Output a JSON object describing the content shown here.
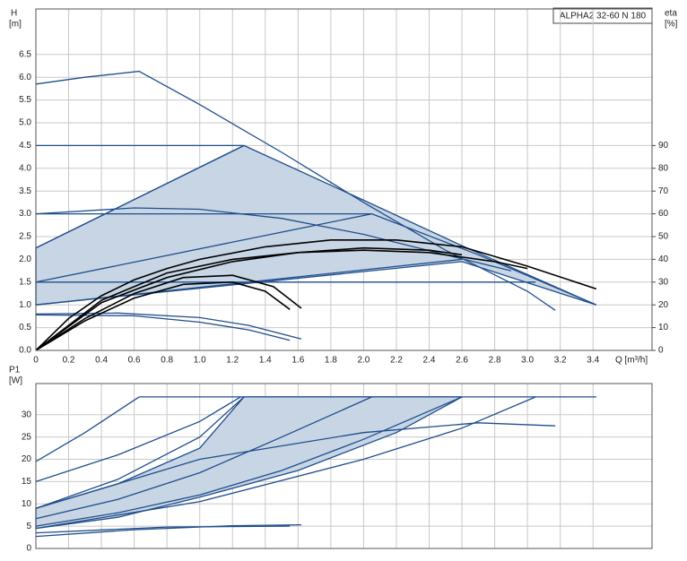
{
  "chart_data": [
    {
      "type": "line",
      "title": "ALPHA2 32-60 N 180",
      "ylabel": "H",
      "yunit": "[m]",
      "y2label": "eta",
      "y2unit": "[%]",
      "xlabel": "Q [m³/h]",
      "xlim": [
        0,
        3.76
      ],
      "ylim": [
        0,
        7.5
      ],
      "y2lim": [
        0,
        150
      ],
      "grid": true,
      "xticks": [
        0,
        0.2,
        0.4,
        0.6,
        0.8,
        {
          "value": 1,
          "label": "1.0"
        },
        1.2,
        1.4,
        1.6,
        1.8,
        {
          "value": 2,
          "label": "2.0"
        },
        2.2,
        2.4,
        2.6,
        2.8,
        {
          "value": 3,
          "label": "3.0"
        },
        3.2,
        3.4
      ],
      "yticks": [
        {
          "value": 0,
          "label": "0.0"
        },
        0.5,
        {
          "value": 1,
          "label": "1.0"
        },
        1.5,
        {
          "value": 2,
          "label": "2.0"
        },
        2.5,
        {
          "value": 3,
          "label": "3.0"
        },
        3.5,
        {
          "value": 4,
          "label": "4.0"
        },
        4.5,
        {
          "value": 5,
          "label": "5.0"
        },
        5.5,
        {
          "value": 6,
          "label": "6.0"
        },
        6.5
      ],
      "y2ticks": [
        0,
        10,
        20,
        30,
        40,
        50,
        60,
        70,
        80,
        90
      ],
      "series": [
        {
          "color": "#1f4e8c",
          "fill": "#c8d5e4",
          "x": [
            0,
            0,
            1.27,
            2.0,
            2.6,
            3.42,
            2.6,
            0
          ],
          "values": [
            1.0,
            2.25,
            4.5,
            3.3,
            2.3,
            1.0,
            1.95,
            1.0
          ]
        },
        {
          "color": "#1f4e8c",
          "x": [
            0,
            0.3,
            0.63,
            1.0,
            1.5,
            2.0,
            2.5,
            3.0,
            3.17
          ],
          "values": [
            5.85,
            6.0,
            6.13,
            5.4,
            4.35,
            3.25,
            2.2,
            1.3,
            0.88
          ]
        },
        {
          "color": "#1f4e8c",
          "x": [
            0,
            1.27
          ],
          "values": [
            4.5,
            4.5
          ]
        },
        {
          "color": "#1f4e8c",
          "x": [
            0,
            2.05
          ],
          "values": [
            3.0,
            3.0
          ]
        },
        {
          "color": "#1f4e8c",
          "x": [
            0,
            3.05
          ],
          "values": [
            1.5,
            1.5
          ]
        },
        {
          "color": "#1f4e8c",
          "x": [
            0,
            1.27
          ],
          "values": [
            2.25,
            4.5
          ]
        },
        {
          "color": "#1f4e8c",
          "x": [
            0,
            2.05
          ],
          "values": [
            1.5,
            3.0
          ]
        },
        {
          "color": "#1f4e8c",
          "x": [
            0,
            2.6
          ],
          "values": [
            1.0,
            2.0
          ]
        },
        {
          "color": "#1f4e8c",
          "x": [
            2.05,
            2.7,
            3.42
          ],
          "values": [
            3.0,
            2.1,
            1.0
          ]
        },
        {
          "color": "#1f4e8c",
          "x": [
            0,
            0.6,
            1.0,
            1.5,
            2.0,
            2.5,
            2.9
          ],
          "values": [
            3.0,
            3.13,
            3.1,
            2.9,
            2.55,
            2.1,
            1.75
          ]
        },
        {
          "color": "#1f4e8c",
          "x": [
            0,
            0.5,
            1.0,
            1.3,
            1.62
          ],
          "values": [
            0.8,
            0.82,
            0.72,
            0.55,
            0.25
          ]
        },
        {
          "color": "#1f4e8c",
          "x": [
            0,
            0.6,
            1.0,
            1.3,
            1.55
          ],
          "values": [
            0.78,
            0.76,
            0.62,
            0.45,
            0.22
          ]
        },
        {
          "color": "#000000",
          "axis": "y2",
          "x": [
            0,
            0.2,
            0.4,
            0.6,
            0.8,
            1.0,
            1.4,
            1.8,
            2.2,
            2.6,
            3.0,
            3.42
          ],
          "values": [
            0,
            14,
            24,
            31,
            36,
            40,
            45.5,
            48.5,
            48.5,
            45.5,
            37,
            27
          ]
        },
        {
          "color": "#000000",
          "axis": "y2",
          "x": [
            0,
            0.4,
            0.8,
            1.2,
            1.6,
            2.0,
            2.4,
            2.8,
            3.0
          ],
          "values": [
            0,
            22,
            34,
            40,
            43,
            44,
            43,
            39,
            36
          ]
        },
        {
          "color": "#000000",
          "axis": "y2",
          "x": [
            0,
            0.4,
            0.8,
            1.2,
            1.6,
            2.0,
            2.4,
            2.6
          ],
          "values": [
            0,
            21,
            32,
            39,
            43,
            45,
            44,
            42
          ]
        },
        {
          "color": "#000000",
          "axis": "y2",
          "x": [
            0,
            0.3,
            0.6,
            0.9,
            1.2,
            1.45,
            1.62
          ],
          "values": [
            0,
            14,
            25,
            32,
            33,
            28,
            18.5
          ]
        },
        {
          "color": "#000000",
          "axis": "y2",
          "x": [
            0,
            0.3,
            0.6,
            0.9,
            1.2,
            1.4,
            1.55
          ],
          "values": [
            0,
            13,
            23,
            29,
            30,
            26,
            18
          ]
        }
      ]
    },
    {
      "type": "line",
      "ylabel": "P1",
      "yunit": "[W]",
      "xlim": [
        0,
        3.76
      ],
      "ylim": [
        0,
        37
      ],
      "grid": true,
      "yticks": [
        0,
        5,
        10,
        15,
        20,
        25,
        30
      ],
      "series": [
        {
          "color": "#1f4e8c",
          "fill": "#c8d5e4",
          "x": [
            0,
            0,
            0.5,
            1.0,
            1.27,
            2.6,
            2.2,
            1.6,
            1.0,
            0.5,
            0
          ],
          "values": [
            4.5,
            9,
            14.5,
            22.5,
            34,
            34,
            26,
            17.5,
            11.5,
            7,
            4.5
          ]
        },
        {
          "color": "#1f4e8c",
          "x": [
            0,
            0.3,
            0.63
          ],
          "values": [
            19.5,
            26,
            34
          ]
        },
        {
          "color": "#1f4e8c",
          "x": [
            0,
            0.5,
            1.0,
            1.25
          ],
          "values": [
            15,
            21,
            28.5,
            34
          ]
        },
        {
          "color": "#1f4e8c",
          "x": [
            0,
            0.5,
            1.0,
            1.27
          ],
          "values": [
            9,
            15.5,
            25,
            34
          ]
        },
        {
          "color": "#1f4e8c",
          "x": [
            0,
            0.5,
            1.0,
            1.5,
            2.05
          ],
          "values": [
            6.7,
            11,
            17,
            25,
            34
          ]
        },
        {
          "color": "#1f4e8c",
          "x": [
            0,
            0.5,
            1.0,
            1.5,
            2.0,
            2.6
          ],
          "values": [
            5,
            8,
            12,
            17.5,
            24.5,
            34
          ]
        },
        {
          "color": "#1f4e8c",
          "x": [
            0,
            1.0,
            2.0,
            2.6,
            3.05
          ],
          "values": [
            4.5,
            10.5,
            20,
            27,
            34
          ]
        },
        {
          "color": "#1f4e8c",
          "x": [
            0.63,
            3.42
          ],
          "values": [
            34,
            34
          ]
        },
        {
          "color": "#1f4e8c",
          "x": [
            0,
            1.0,
            2.0,
            2.7,
            3.17
          ],
          "values": [
            9,
            20,
            26,
            28.2,
            27.5
          ]
        },
        {
          "color": "#1f4e8c",
          "x": [
            0,
            0.6,
            1.2,
            1.62
          ],
          "values": [
            2.7,
            4.2,
            5.1,
            5.3
          ]
        },
        {
          "color": "#1f4e8c",
          "x": [
            0,
            0.8,
            1.55
          ],
          "values": [
            3.5,
            4.8,
            5.0
          ]
        }
      ]
    }
  ]
}
